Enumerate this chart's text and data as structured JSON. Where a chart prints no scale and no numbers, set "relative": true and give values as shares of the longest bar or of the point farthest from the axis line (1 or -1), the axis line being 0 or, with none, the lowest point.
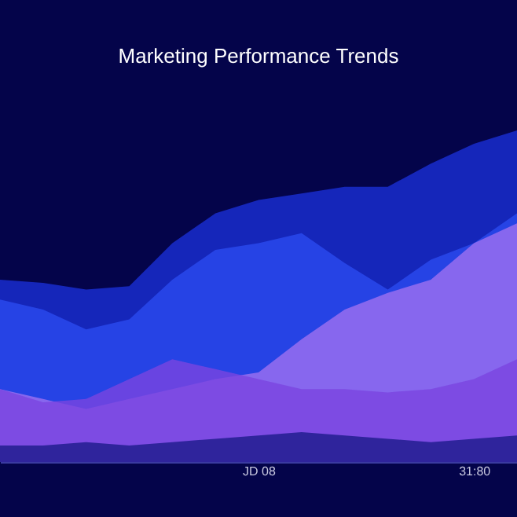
{
  "chart_data": {
    "type": "area",
    "title": "Marketing Performance Trends",
    "relative": true,
    "categories": [
      null,
      null,
      null,
      null,
      null,
      null,
      "JD 08",
      null,
      null,
      null,
      null,
      "31:80",
      null
    ],
    "series": [
      {
        "color": "#1a2fd6",
        "values": [
          0.55,
          0.54,
          0.52,
          0.53,
          0.66,
          0.75,
          0.79,
          0.81,
          0.83,
          0.83,
          0.9,
          0.96,
          1.0
        ]
      },
      {
        "color": "#2a4bf0",
        "values": [
          0.49,
          0.46,
          0.4,
          0.43,
          0.55,
          0.64,
          0.66,
          0.69,
          0.6,
          0.52,
          0.61,
          0.66,
          0.75
        ]
      },
      {
        "color": "#a070f0",
        "values": [
          0.22,
          0.19,
          0.16,
          0.19,
          0.22,
          0.25,
          0.27,
          0.37,
          0.46,
          0.51,
          0.55,
          0.66,
          0.72
        ]
      },
      {
        "color": "#7a45e0",
        "values": [
          0.22,
          0.18,
          0.19,
          0.25,
          0.31,
          0.28,
          0.25,
          0.22,
          0.22,
          0.21,
          0.22,
          0.25,
          0.31
        ]
      },
      {
        "color": "#1c1a8a",
        "values": [
          0.05,
          0.05,
          0.06,
          0.05,
          0.06,
          0.07,
          0.08,
          0.09,
          0.08,
          0.07,
          0.06,
          0.07,
          0.08
        ]
      }
    ]
  }
}
